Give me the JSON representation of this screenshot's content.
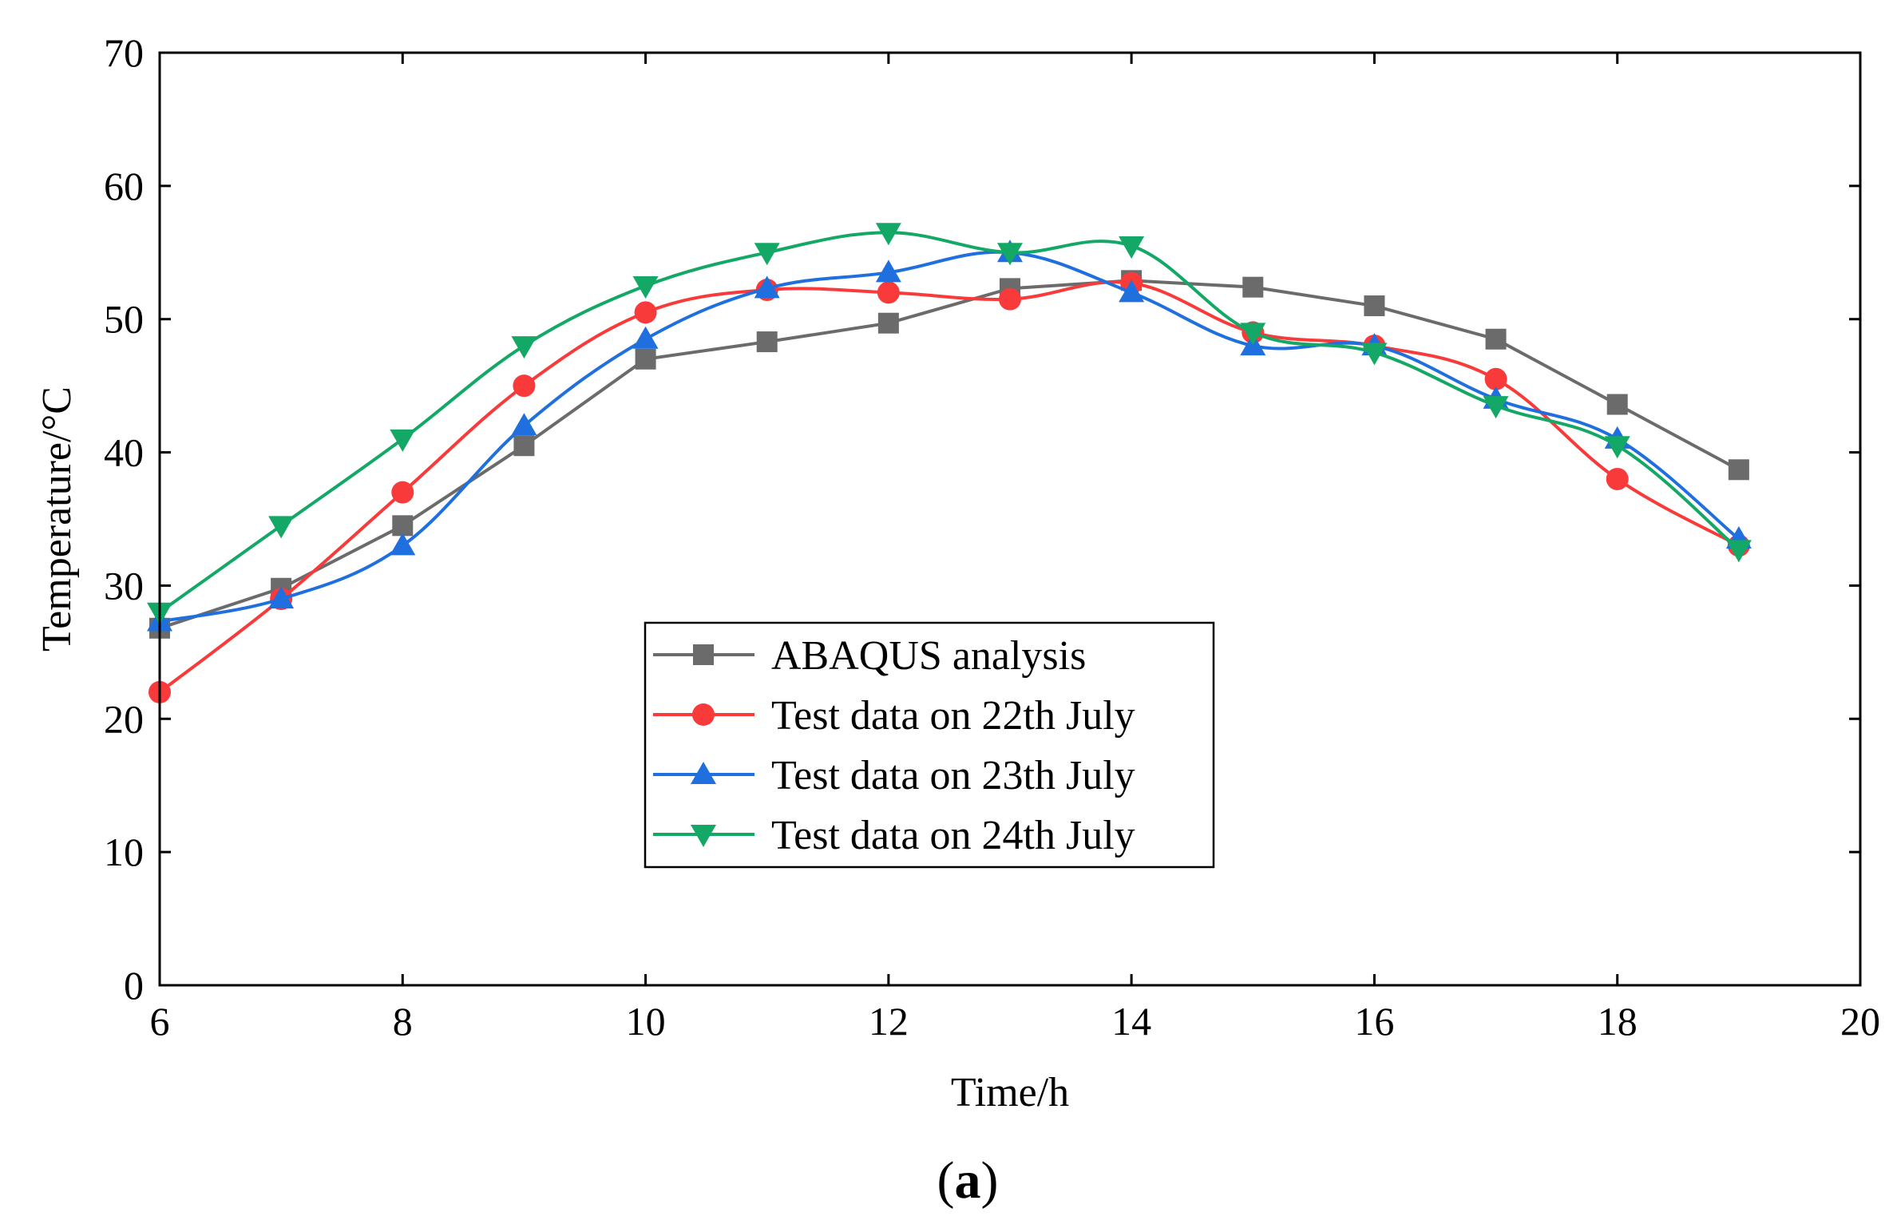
{
  "chart_data": {
    "type": "line",
    "title": "",
    "xlabel": "Time/h",
    "ylabel": "Temperature/°C",
    "xlim": [
      6,
      20
    ],
    "ylim": [
      0,
      70
    ],
    "xticks": [
      6,
      8,
      10,
      12,
      14,
      16,
      18,
      20
    ],
    "yticks": [
      0,
      10,
      20,
      30,
      40,
      50,
      60,
      70
    ],
    "x": [
      6,
      7,
      8,
      9,
      10,
      11,
      12,
      13,
      14,
      15,
      16,
      17,
      18,
      19
    ],
    "legend_position": "bottom-center",
    "series": [
      {
        "name": "ABAQUS analysis",
        "color": "#6b6b6b",
        "marker": "square",
        "smooth": false,
        "values": [
          26.8,
          29.8,
          34.5,
          40.5,
          47.0,
          48.3,
          49.7,
          52.3,
          52.9,
          52.4,
          51.0,
          48.5,
          43.6,
          38.7
        ]
      },
      {
        "name": "Test data on 22th July",
        "color": "#f83a3a",
        "marker": "circle",
        "smooth": true,
        "values": [
          22.0,
          29.0,
          37.0,
          45.0,
          50.5,
          52.2,
          52.0,
          51.5,
          52.7,
          49.0,
          48.0,
          45.5,
          38.0,
          33.0
        ]
      },
      {
        "name": "Test data on 23th July",
        "color": "#1f6fde",
        "marker": "triangle-up",
        "smooth": true,
        "values": [
          27.3,
          29.0,
          33.0,
          42.0,
          48.5,
          52.3,
          53.5,
          55.0,
          52.0,
          48.0,
          48.0,
          44.0,
          41.0,
          33.5
        ]
      },
      {
        "name": "Test data on 24th July",
        "color": "#13a865",
        "marker": "triangle-down",
        "smooth": true,
        "values": [
          28.0,
          34.5,
          41.0,
          48.0,
          52.5,
          55.0,
          56.5,
          55.0,
          55.5,
          49.0,
          47.5,
          43.5,
          40.5,
          32.7
        ]
      }
    ]
  },
  "caption": {
    "open": "(",
    "letter": "a",
    "close": ")"
  }
}
